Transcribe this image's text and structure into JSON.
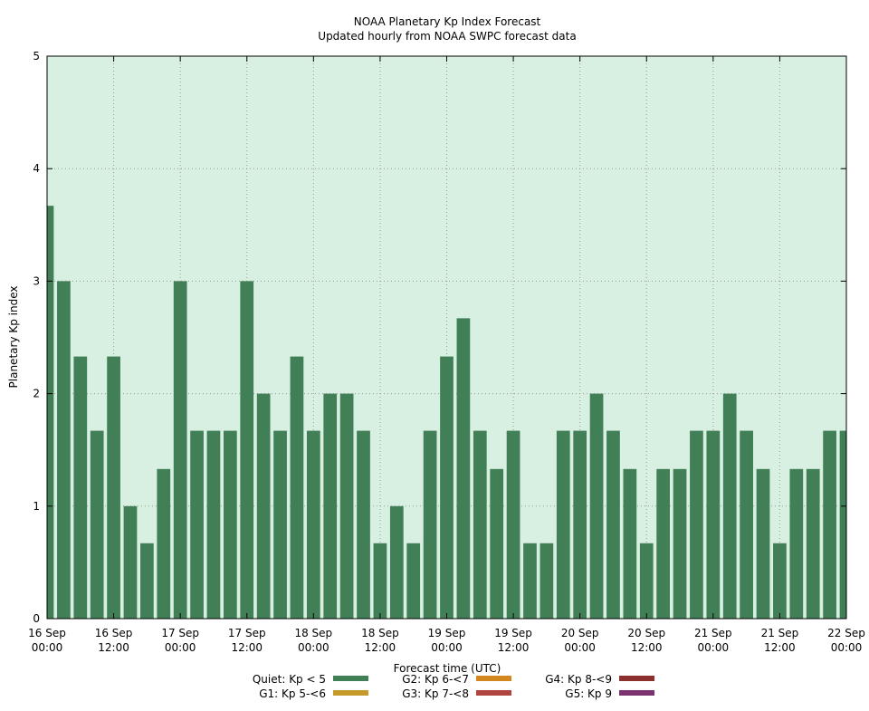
{
  "chart_data": {
    "type": "bar",
    "title": "NOAA Planetary Kp Index Forecast",
    "subtitle": "Updated hourly from NOAA SWPC forecast data",
    "xlabel": "Forecast time (UTC)",
    "ylabel": "Planetary Kp index",
    "ylim": [
      0,
      5
    ],
    "yticks": [
      0,
      1,
      2,
      3,
      4,
      5
    ],
    "grid": true,
    "background_color": "#d8f0e1",
    "bar_color": "#417f56",
    "x_interval_hours": 3,
    "x_start": "16 Sep 00:00",
    "x_end": "22 Sep 00:00",
    "xticks": [
      {
        "line1": "16 Sep",
        "line2": "00:00",
        "hours": 0
      },
      {
        "line1": "16 Sep",
        "line2": "12:00",
        "hours": 12
      },
      {
        "line1": "17 Sep",
        "line2": "00:00",
        "hours": 24
      },
      {
        "line1": "17 Sep",
        "line2": "12:00",
        "hours": 36
      },
      {
        "line1": "18 Sep",
        "line2": "00:00",
        "hours": 48
      },
      {
        "line1": "18 Sep",
        "line2": "12:00",
        "hours": 60
      },
      {
        "line1": "19 Sep",
        "line2": "00:00",
        "hours": 72
      },
      {
        "line1": "19 Sep",
        "line2": "12:00",
        "hours": 84
      },
      {
        "line1": "20 Sep",
        "line2": "00:00",
        "hours": 96
      },
      {
        "line1": "20 Sep",
        "line2": "12:00",
        "hours": 108
      },
      {
        "line1": "21 Sep",
        "line2": "00:00",
        "hours": 120
      },
      {
        "line1": "21 Sep",
        "line2": "12:00",
        "hours": 132
      },
      {
        "line1": "22 Sep",
        "line2": "00:00",
        "hours": 144
      }
    ],
    "values": [
      3.67,
      3.0,
      2.33,
      1.67,
      2.33,
      1.0,
      0.67,
      1.33,
      3.0,
      1.67,
      1.67,
      1.67,
      3.0,
      2.0,
      1.67,
      2.33,
      1.67,
      2.0,
      2.0,
      1.67,
      0.67,
      1.0,
      0.67,
      1.67,
      2.33,
      2.67,
      1.67,
      1.33,
      1.67,
      0.67,
      0.67,
      1.67,
      1.67,
      2.0,
      1.67,
      1.33,
      0.67,
      1.33,
      1.33,
      1.67,
      1.67,
      2.0,
      1.67,
      1.33,
      0.67,
      1.33,
      1.33,
      1.67,
      1.67
    ],
    "legend": [
      {
        "label": "Quiet: Kp < 5",
        "color": "#417f56"
      },
      {
        "label": "G1: Kp 5-<6",
        "color": "#c49a2a"
      },
      {
        "label": "G2: Kp 6-<7",
        "color": "#d4861f"
      },
      {
        "label": "G3: Kp 7-<8",
        "color": "#b04540"
      },
      {
        "label": "G4: Kp 8-<9",
        "color": "#8b2f2f"
      },
      {
        "label": "G5: Kp 9",
        "color": "#7d3270"
      }
    ],
    "legend_position": "bottom"
  }
}
